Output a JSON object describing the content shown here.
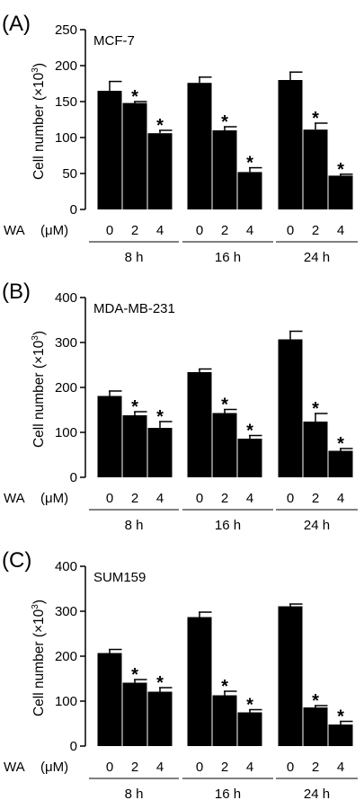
{
  "figure": {
    "dose_axis_label": "WA",
    "dose_unit_label": "(μM)",
    "ylabel_main": "Cell number (×10",
    "ylabel_exp": "3",
    "ylabel_close": ")"
  },
  "chart_data": [
    {
      "type": "bar",
      "panel": "(A)",
      "cell_line": "MCF-7",
      "ylim": [
        0,
        250
      ],
      "yticks": [
        0,
        50,
        100,
        150,
        200,
        250
      ],
      "doses": [
        "0",
        "2",
        "4"
      ],
      "groups": [
        {
          "label": "8 h",
          "values": [
            165,
            148,
            106
          ],
          "errors": [
            13,
            2,
            4
          ],
          "significant": [
            false,
            true,
            true
          ]
        },
        {
          "label": "16 h",
          "values": [
            176,
            110,
            52
          ],
          "errors": [
            8,
            5,
            6
          ],
          "significant": [
            false,
            true,
            true
          ]
        },
        {
          "label": "24 h",
          "values": [
            180,
            111,
            47
          ],
          "errors": [
            11,
            9,
            2
          ],
          "significant": [
            false,
            true,
            true
          ]
        }
      ]
    },
    {
      "type": "bar",
      "panel": "(B)",
      "cell_line": "MDA-MB-231",
      "ylim": [
        0,
        400
      ],
      "yticks": [
        0,
        100,
        200,
        300,
        400
      ],
      "doses": [
        "0",
        "2",
        "4"
      ],
      "groups": [
        {
          "label": "8 h",
          "values": [
            181,
            138,
            110
          ],
          "errors": [
            11,
            8,
            14
          ],
          "significant": [
            false,
            true,
            true
          ]
        },
        {
          "label": "16 h",
          "values": [
            234,
            143,
            86
          ],
          "errors": [
            7,
            8,
            7
          ],
          "significant": [
            false,
            true,
            true
          ]
        },
        {
          "label": "24 h",
          "values": [
            307,
            124,
            59
          ],
          "errors": [
            18,
            18,
            5
          ],
          "significant": [
            false,
            true,
            true
          ]
        }
      ]
    },
    {
      "type": "bar",
      "panel": "(C)",
      "cell_line": "SUM159",
      "ylim": [
        0,
        400
      ],
      "yticks": [
        0,
        100,
        200,
        300,
        400
      ],
      "doses": [
        "0",
        "2",
        "4"
      ],
      "groups": [
        {
          "label": "8 h",
          "values": [
            207,
            141,
            121
          ],
          "errors": [
            8,
            7,
            9
          ],
          "significant": [
            false,
            true,
            true
          ]
        },
        {
          "label": "16 h",
          "values": [
            287,
            113,
            75
          ],
          "errors": [
            11,
            9,
            6
          ],
          "significant": [
            false,
            true,
            true
          ]
        },
        {
          "label": "24 h",
          "values": [
            311,
            86,
            48
          ],
          "errors": [
            5,
            4,
            7
          ],
          "significant": [
            false,
            true,
            true
          ]
        }
      ]
    }
  ]
}
